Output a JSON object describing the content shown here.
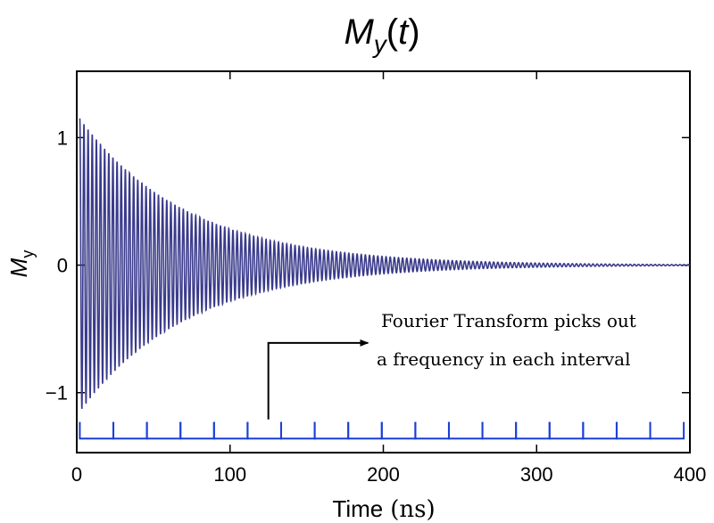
{
  "chart_data": {
    "type": "line",
    "title": {
      "main": "M",
      "sub": "y",
      "paren_open": "(",
      "var": "t",
      "paren_close": ")"
    },
    "xlabel": {
      "text": "Time",
      "unit": "(ns)"
    },
    "ylabel": {
      "main": "M",
      "sub": "y"
    },
    "xlim": [
      0,
      400
    ],
    "ylim": [
      -1.47,
      1.52
    ],
    "x_ticks": [
      {
        "value": 0,
        "label": "0"
      },
      {
        "value": 100,
        "label": "100"
      },
      {
        "value": 200,
        "label": "200"
      },
      {
        "value": 300,
        "label": "300"
      },
      {
        "value": 400,
        "label": "400"
      }
    ],
    "y_ticks": [
      {
        "value": -1,
        "label": "−1"
      },
      {
        "value": 0,
        "label": "0"
      },
      {
        "value": 1,
        "label": "1"
      }
    ],
    "grid": false,
    "series": [
      {
        "color": "#3a3a8c",
        "signal": {
          "form": "damped_cosine",
          "amplitude": 1.15,
          "decay_time_ns": 70,
          "period_ns": 2.7,
          "t_start_ns": 2,
          "t_end_ns": 400
        }
      }
    ],
    "interval_markers": {
      "color": "#1a3fd6",
      "start_ns": 2,
      "end_ns": 396,
      "count": 18,
      "y_high": -1.23,
      "y_low": -1.36
    },
    "annotation": {
      "lines": [
        "Fourier Transform picks out",
        "a frequency in each interval"
      ],
      "arrow_from": {
        "x": 125,
        "y": -1.21
      },
      "arrow_corner": {
        "x": 125,
        "y": -0.61
      },
      "arrow_to": {
        "x": 190,
        "y": -0.61
      }
    }
  }
}
